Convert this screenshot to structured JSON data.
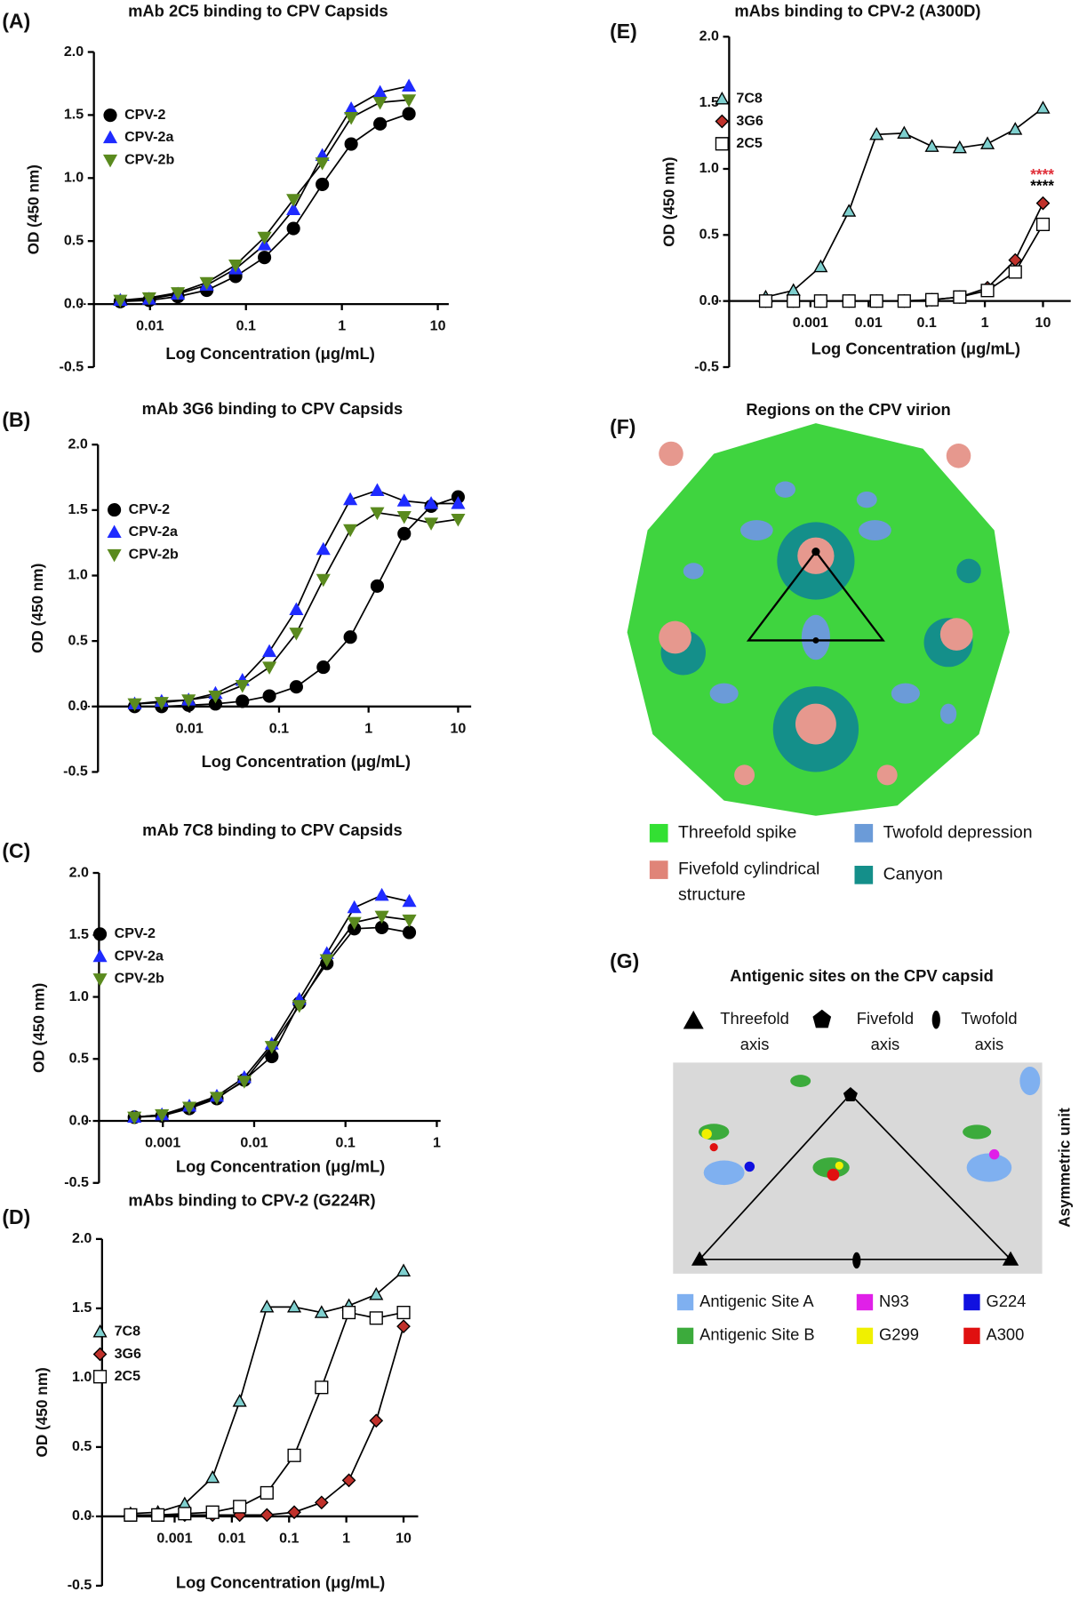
{
  "chart_data": [
    {
      "type": "line",
      "panel": "(A)",
      "title": "mAb 2C5 binding to CPV Capsids",
      "xlabel": "Log Concentration (μg/mL)",
      "ylabel": "OD (450 nm)",
      "log_x": true,
      "x": [
        0.0049,
        0.0098,
        0.0195,
        0.039,
        0.078,
        0.156,
        0.3125,
        0.625,
        1.25,
        2.5,
        5
      ],
      "xlim": [
        0.0026,
        13
      ],
      "xticks": [
        0.01,
        0.1,
        1,
        10
      ],
      "ylim": [
        -0.5,
        2
      ],
      "yticks": [
        {
          "value": 2,
          "label": "2.0"
        },
        {
          "value": 1.5,
          "label": "1.5"
        },
        {
          "value": 1,
          "label": "1.0"
        },
        {
          "value": 0.5,
          "label": "0.5"
        },
        {
          "value": 0,
          "label": "0.0"
        },
        {
          "value": -0.5,
          "label": "-0.5"
        }
      ],
      "series": [
        {
          "name": "CPV-2",
          "color": "#000000",
          "marker": "circle",
          "values": [
            0.02,
            0.03,
            0.06,
            0.11,
            0.22,
            0.37,
            0.6,
            0.95,
            1.27,
            1.43,
            1.51
          ]
        },
        {
          "name": "CPV-2a",
          "color": "#1f2bff",
          "marker": "triangle-up",
          "values": [
            0.03,
            0.04,
            0.08,
            0.15,
            0.28,
            0.47,
            0.75,
            1.18,
            1.55,
            1.68,
            1.73
          ]
        },
        {
          "name": "CPV-2b",
          "color": "#5a8a1e",
          "marker": "triangle-down",
          "values": [
            0.03,
            0.05,
            0.09,
            0.17,
            0.31,
            0.53,
            0.83,
            1.12,
            1.48,
            1.6,
            1.62
          ]
        }
      ]
    },
    {
      "type": "line",
      "panel": "(B)",
      "title": "mAb 3G6 binding to CPV Capsids",
      "xlabel": "Log Concentration (μg/mL)",
      "ylabel": "OD (450 nm)",
      "log_x": true,
      "x": [
        0.00244,
        0.00488,
        0.00977,
        0.0195,
        0.039,
        0.078,
        0.156,
        0.3125,
        0.625,
        1.25,
        2.5,
        5,
        10
      ],
      "xlim": [
        0.00095,
        14
      ],
      "xticks": [
        0.01,
        0.1,
        1,
        10
      ],
      "ylim": [
        -0.5,
        2
      ],
      "yticks": [
        {
          "value": 2,
          "label": "2.0"
        },
        {
          "value": 1.5,
          "label": "1.5"
        },
        {
          "value": 1,
          "label": "1.0"
        },
        {
          "value": 0.5,
          "label": "0.5"
        },
        {
          "value": 0,
          "label": "0.0"
        },
        {
          "value": -0.5,
          "label": "-0.5"
        }
      ],
      "series": [
        {
          "name": "CPV-2",
          "color": "#000000",
          "marker": "circle",
          "values": [
            0.0,
            0.0,
            0.01,
            0.02,
            0.04,
            0.08,
            0.15,
            0.3,
            0.53,
            0.92,
            1.32,
            1.53,
            1.6
          ]
        },
        {
          "name": "CPV-2a",
          "color": "#1f2bff",
          "marker": "triangle-up",
          "values": [
            0.02,
            0.04,
            0.05,
            0.1,
            0.2,
            0.42,
            0.74,
            1.2,
            1.58,
            1.65,
            1.57,
            1.55,
            1.55
          ]
        },
        {
          "name": "CPV-2b",
          "color": "#5a8a1e",
          "marker": "triangle-down",
          "values": [
            0.02,
            0.03,
            0.05,
            0.08,
            0.16,
            0.3,
            0.56,
            0.97,
            1.35,
            1.48,
            1.45,
            1.4,
            1.43
          ]
        }
      ]
    },
    {
      "type": "line",
      "panel": "(C)",
      "title": "mAb 7C8 binding to CPV Capsids",
      "xlabel": "Log Concentration (μg/mL)",
      "ylabel": "OD (450 nm)",
      "log_x": true,
      "x": [
        0.000488,
        0.000977,
        0.00195,
        0.0039,
        0.0078,
        0.0156,
        0.03125,
        0.0625,
        0.125,
        0.25,
        0.5
      ],
      "xlim": [
        0.0002,
        1.1
      ],
      "xticks": [
        0.001,
        0.01,
        0.1,
        1
      ],
      "ylim": [
        -0.5,
        2
      ],
      "yticks": [
        {
          "value": 2,
          "label": "2.0"
        },
        {
          "value": 1.5,
          "label": "1.5"
        },
        {
          "value": 1,
          "label": "1.0"
        },
        {
          "value": 0.5,
          "label": "0.5"
        },
        {
          "value": 0,
          "label": "0.0"
        },
        {
          "value": -0.5,
          "label": "-0.5"
        }
      ],
      "series": [
        {
          "name": "CPV-2",
          "color": "#000000",
          "marker": "circle",
          "values": [
            0.03,
            0.04,
            0.1,
            0.18,
            0.33,
            0.52,
            0.95,
            1.27,
            1.55,
            1.56,
            1.52
          ]
        },
        {
          "name": "CPV-2a",
          "color": "#1f2bff",
          "marker": "triangle-up",
          "values": [
            0.03,
            0.05,
            0.12,
            0.2,
            0.35,
            0.62,
            0.98,
            1.35,
            1.72,
            1.82,
            1.77
          ]
        },
        {
          "name": "CPV-2b",
          "color": "#5a8a1e",
          "marker": "triangle-down",
          "values": [
            0.03,
            0.05,
            0.11,
            0.19,
            0.32,
            0.6,
            0.93,
            1.3,
            1.6,
            1.65,
            1.62
          ]
        }
      ]
    },
    {
      "type": "line",
      "panel": "(D)",
      "title": "mAbs binding to CPV-2 (G224R)",
      "xlabel": "Log Concentration (μg/mL)",
      "ylabel": "OD (450 nm)",
      "log_x": true,
      "x": [
        0.00017,
        0.00051,
        0.0015,
        0.0046,
        0.0137,
        0.041,
        0.123,
        0.37,
        1.11,
        3.33,
        10
      ],
      "xlim": [
        5.4e-05,
        18
      ],
      "xticks": [
        0.001,
        0.01,
        0.1,
        1,
        10
      ],
      "ylim": [
        -0.5,
        2
      ],
      "yticks": [
        {
          "value": 2,
          "label": "2.0"
        },
        {
          "value": 1.5,
          "label": "1.5"
        },
        {
          "value": 1,
          "label": "1.0"
        },
        {
          "value": 0.5,
          "label": "0.5"
        },
        {
          "value": 0,
          "label": "0.0"
        },
        {
          "value": -0.5,
          "label": "-0.5"
        }
      ],
      "series": [
        {
          "name": "7C8",
          "color": "#7fd0cf",
          "marker": "triangle-up",
          "values": [
            0.02,
            0.03,
            0.09,
            0.28,
            0.83,
            1.51,
            1.51,
            1.47,
            1.52,
            1.6,
            1.77
          ]
        },
        {
          "name": "3G6",
          "color": "#c0312b",
          "marker": "diamond",
          "values": [
            0.01,
            0.01,
            0.01,
            0.01,
            0.01,
            0.01,
            0.03,
            0.1,
            0.26,
            0.69,
            1.37
          ]
        },
        {
          "name": "2C5",
          "color": "#ffffff",
          "marker": "square",
          "values": [
            0.01,
            0.01,
            0.02,
            0.03,
            0.07,
            0.17,
            0.44,
            0.93,
            1.47,
            1.43,
            1.47
          ]
        }
      ]
    },
    {
      "type": "line",
      "panel": "(E)",
      "title": "mAbs binding to CPV-2 (A300D)",
      "xlabel": "Log Concentration (μg/mL)",
      "ylabel": "OD (450 nm)",
      "log_x": true,
      "x": [
        0.00017,
        0.00051,
        0.0015,
        0.0046,
        0.0137,
        0.041,
        0.123,
        0.37,
        1.11,
        3.33,
        10
      ],
      "xlim": [
        4e-05,
        30
      ],
      "xticks": [
        0.001,
        0.01,
        0.1,
        1,
        10
      ],
      "ylim": [
        -0.5,
        2
      ],
      "yticks": [
        {
          "value": 2,
          "label": "2.0"
        },
        {
          "value": 1.5,
          "label": "1.5"
        },
        {
          "value": 1,
          "label": "1.0"
        },
        {
          "value": 0.5,
          "label": "0.5"
        },
        {
          "value": 0,
          "label": "0.0"
        },
        {
          "value": -0.5,
          "label": "-0.5"
        }
      ],
      "series": [
        {
          "name": "7C8",
          "color": "#7fd0cf",
          "marker": "triangle-up",
          "values": [
            0.03,
            0.08,
            0.26,
            0.68,
            1.26,
            1.27,
            1.17,
            1.16,
            1.19,
            1.3,
            1.46
          ]
        },
        {
          "name": "3G6",
          "color": "#c0312b",
          "marker": "diamond",
          "values": [
            0,
            0,
            0,
            0,
            0,
            0,
            0.01,
            0.03,
            0.1,
            0.31,
            0.74
          ]
        },
        {
          "name": "2C5",
          "color": "#ffffff",
          "marker": "square",
          "values": [
            0,
            0,
            0,
            0,
            0,
            0,
            0.01,
            0.03,
            0.08,
            0.22,
            0.58
          ]
        }
      ],
      "annotations": [
        {
          "text": "****",
          "color": "#e0303a"
        },
        {
          "text": "****",
          "color": "#000000"
        }
      ]
    }
  ],
  "figures": [
    {
      "panel": "(F)",
      "title": "Regions on the CPV virion",
      "legend": [
        {
          "label": "Threefold spike",
          "color": "#33e033"
        },
        {
          "label": "Twofold depression",
          "color": "#6b9bd8"
        },
        {
          "label": [
            "Fivefold cylindrical",
            "structure"
          ],
          "color": "#e08478"
        },
        {
          "label": "Canyon",
          "color": "#148f8a"
        }
      ]
    },
    {
      "panel": "(G)",
      "title": "Antigenic sites on the CPV capsid",
      "axis_symbols": [
        [
          "Threefold",
          "axis"
        ],
        [
          "Fivefold",
          "axis"
        ],
        [
          "Twofold",
          "axis"
        ]
      ],
      "side_label": "Asymmetric unit",
      "legend": [
        {
          "label": "Antigenic Site A",
          "color": "#7fb0f0"
        },
        {
          "label": "N93",
          "color": "#e020e8"
        },
        {
          "label": "G224",
          "color": "#1010e0"
        },
        {
          "label": "Antigenic Site B",
          "color": "#3cab3c"
        },
        {
          "label": "G299",
          "color": "#f0f000"
        },
        {
          "label": "A300",
          "color": "#e01010"
        }
      ]
    }
  ]
}
